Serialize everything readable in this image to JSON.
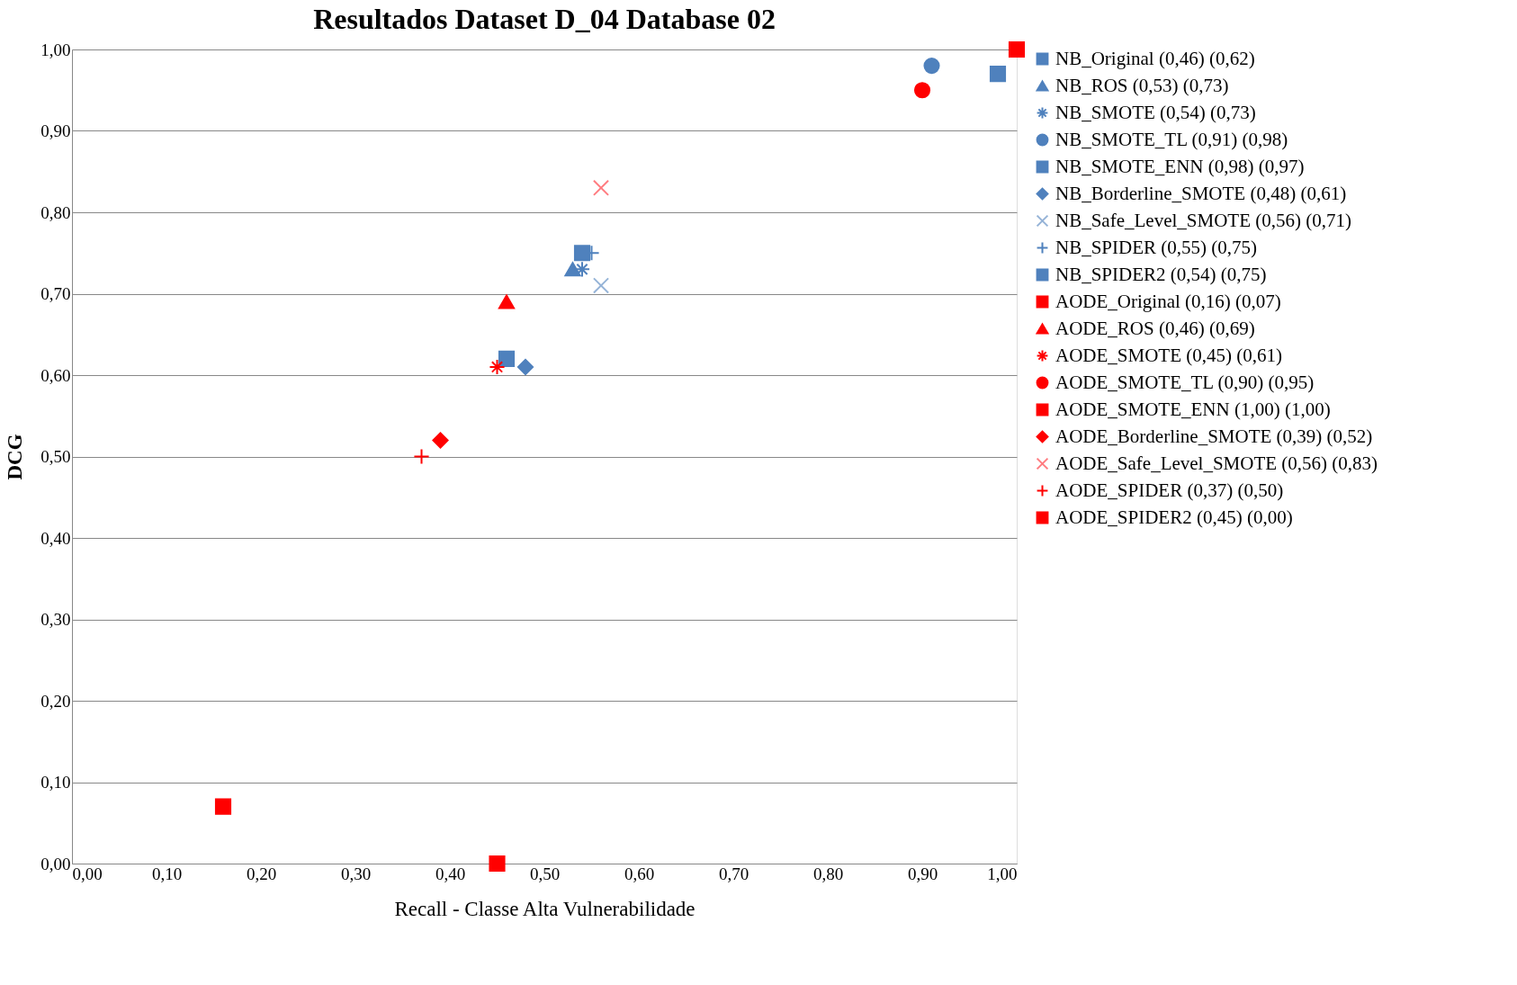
{
  "chart_data": {
    "type": "scatter",
    "title": "Resultados Dataset D_04 Database 02",
    "xlabel": "Recall - Classe Alta Vulnerabilidade",
    "ylabel": "DCG",
    "xlim": [
      0,
      1
    ],
    "ylim": [
      0,
      1
    ],
    "xticks": [
      {
        "value": 0,
        "label": "0,00"
      },
      {
        "value": 0.1,
        "label": "0,10"
      },
      {
        "value": 0.2,
        "label": "0,20"
      },
      {
        "value": 0.3,
        "label": "0,30"
      },
      {
        "value": 0.4,
        "label": "0,40"
      },
      {
        "value": 0.5,
        "label": "0,50"
      },
      {
        "value": 0.6,
        "label": "0,60"
      },
      {
        "value": 0.7,
        "label": "0,70"
      },
      {
        "value": 0.8,
        "label": "0,80"
      },
      {
        "value": 0.9,
        "label": "0,90"
      },
      {
        "value": 1,
        "label": "1,00"
      }
    ],
    "yticks": [
      {
        "value": 0,
        "label": "0,00"
      },
      {
        "value": 0.1,
        "label": "0,10"
      },
      {
        "value": 0.2,
        "label": "0,20"
      },
      {
        "value": 0.3,
        "label": "0,30"
      },
      {
        "value": 0.4,
        "label": "0,40"
      },
      {
        "value": 0.5,
        "label": "0,50"
      },
      {
        "value": 0.6,
        "label": "0,60"
      },
      {
        "value": 0.7,
        "label": "0,70"
      },
      {
        "value": 0.8,
        "label": "0,80"
      },
      {
        "value": 0.9,
        "label": "0,90"
      },
      {
        "value": 1,
        "label": "1,00"
      }
    ],
    "grid": "y",
    "legend": "right",
    "series": [
      {
        "name": "NB_Original (0,46) (0,62)",
        "color": "#4f81bd",
        "marker": "square",
        "x": [
          0.46
        ],
        "values": [
          0.62
        ]
      },
      {
        "name": "NB_ROS (0,53) (0,73)",
        "color": "#4f81bd",
        "marker": "triangle",
        "x": [
          0.53
        ],
        "values": [
          0.73
        ]
      },
      {
        "name": "NB_SMOTE (0,54) (0,73)",
        "color": "#4f81bd",
        "marker": "cross",
        "x": [
          0.54
        ],
        "values": [
          0.73
        ]
      },
      {
        "name": "NB_SMOTE_TL (0,91) (0,98)",
        "color": "#4f81bd",
        "marker": "circle",
        "x": [
          0.91
        ],
        "values": [
          0.98
        ]
      },
      {
        "name": "NB_SMOTE_ENN (0,98) (0,97)",
        "color": "#4f81bd",
        "marker": "square",
        "x": [
          0.98
        ],
        "values": [
          0.97
        ]
      },
      {
        "name": "NB_Borderline_SMOTE (0,48) (0,61)",
        "color": "#4f81bd",
        "marker": "diamond",
        "x": [
          0.48
        ],
        "values": [
          0.61
        ]
      },
      {
        "name": "NB_Safe_Level_SMOTE (0,56) (0,71)",
        "color": "#95b3d7",
        "marker": "x",
        "x": [
          0.56
        ],
        "values": [
          0.71
        ]
      },
      {
        "name": "NB_SPIDER (0,55) (0,75)",
        "color": "#4f81bd",
        "marker": "plus",
        "x": [
          0.55
        ],
        "values": [
          0.75
        ]
      },
      {
        "name": "NB_SPIDER2 (0,54) (0,75)",
        "color": "#4f81bd",
        "marker": "square",
        "x": [
          0.54
        ],
        "values": [
          0.75
        ]
      },
      {
        "name": "AODE_Original (0,16) (0,07)",
        "color": "#ff0000",
        "marker": "square",
        "x": [
          0.16
        ],
        "values": [
          0.07
        ]
      },
      {
        "name": "AODE_ROS (0,46) (0,69)",
        "color": "#ff0000",
        "marker": "triangle",
        "x": [
          0.46
        ],
        "values": [
          0.69
        ]
      },
      {
        "name": "AODE_SMOTE (0,45) (0,61)",
        "color": "#ff0000",
        "marker": "cross",
        "x": [
          0.45
        ],
        "values": [
          0.61
        ]
      },
      {
        "name": "AODE_SMOTE_TL (0,90) (0,95)",
        "color": "#ff0000",
        "marker": "circle",
        "x": [
          0.9
        ],
        "values": [
          0.95
        ]
      },
      {
        "name": "AODE_SMOTE_ENN (1,00) (1,00)",
        "color": "#ff0000",
        "marker": "square",
        "x": [
          1.0
        ],
        "values": [
          1.0
        ]
      },
      {
        "name": "AODE_Borderline_SMOTE (0,39) (0,52)",
        "color": "#ff0000",
        "marker": "diamond",
        "x": [
          0.39
        ],
        "values": [
          0.52
        ]
      },
      {
        "name": "AODE_Safe_Level_SMOTE (0,56) (0,83)",
        "color": "#ff7c80",
        "marker": "x",
        "x": [
          0.56
        ],
        "values": [
          0.83
        ]
      },
      {
        "name": "AODE_SPIDER (0,37) (0,50)",
        "color": "#ff0000",
        "marker": "plus",
        "x": [
          0.37
        ],
        "values": [
          0.5
        ]
      },
      {
        "name": "AODE_SPIDER2 (0,45) (0,00)",
        "color": "#ff0000",
        "marker": "square",
        "x": [
          0.45
        ],
        "values": [
          0.0
        ]
      }
    ]
  }
}
